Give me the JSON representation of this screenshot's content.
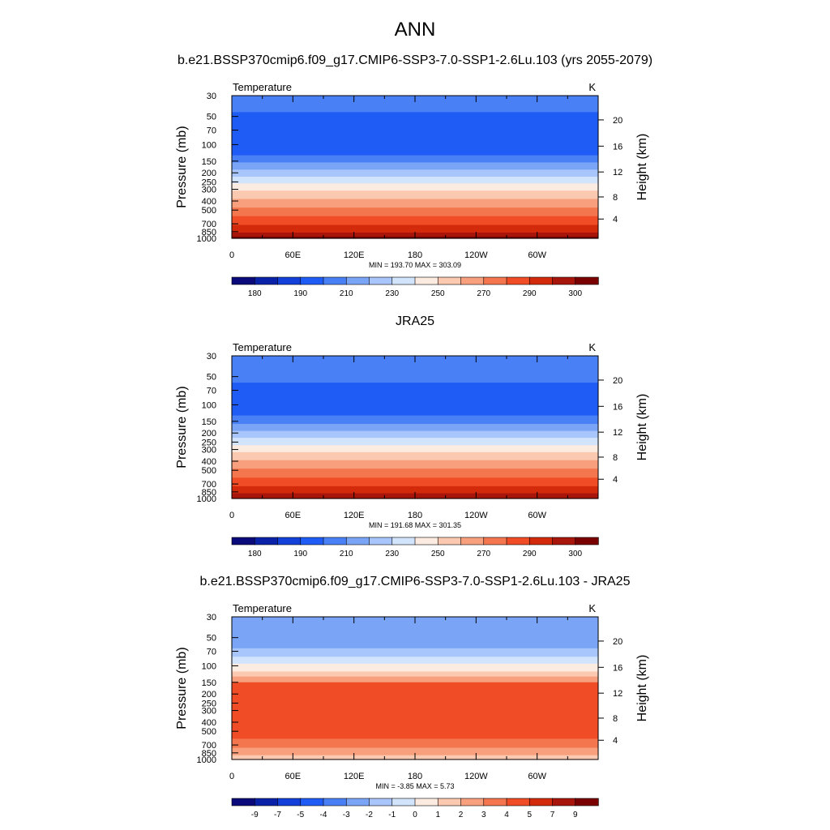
{
  "figure": {
    "title": "ANN",
    "subtitle": "b.e21.BSSP370cmip6.f09_g17.CMIP6-SSP3-7.0-SSP1-2.6Lu.103 (yrs 2055-2079)"
  },
  "chart_data": [
    {
      "type": "heatmap",
      "panel": "model",
      "title": "",
      "variable_label": "Temperature",
      "units": "K",
      "ylabel": "Pressure (mb)",
      "ylabel_right": "Height (km)",
      "x_ticks": [
        "0",
        "60E",
        "120E",
        "180",
        "120W",
        "60W"
      ],
      "pressure_ticks": [
        30,
        50,
        70,
        100,
        150,
        200,
        250,
        300,
        400,
        500,
        700,
        850,
        1000
      ],
      "height_ticks": [
        20,
        16,
        12,
        8,
        4
      ],
      "min_max_text": "MIN = 193.70  MAX = 303.09",
      "min": 193.7,
      "max": 303.09,
      "colorbar_labels": [
        "180",
        "190",
        "210",
        "230",
        "250",
        "270",
        "290",
        "300"
      ],
      "colorbar_colors": [
        "#0a0a7a",
        "#0a22a8",
        "#1240d8",
        "#1f5cf5",
        "#4a80f5",
        "#7aa5f7",
        "#a8c6fb",
        "#d2e4fc",
        "#fcebe0",
        "#fbc8b0",
        "#f8a07e",
        "#f4764e",
        "#f04c25",
        "#d42a0c",
        "#a8150a",
        "#7a0000"
      ],
      "layers": [
        {
          "p": 30,
          "c": 4
        },
        {
          "p": 45,
          "c": 3
        },
        {
          "p": 100,
          "c": 3
        },
        {
          "p": 130,
          "c": 4
        },
        {
          "p": 155,
          "c": 5
        },
        {
          "p": 185,
          "c": 6
        },
        {
          "p": 220,
          "c": 7
        },
        {
          "p": 260,
          "c": 8
        },
        {
          "p": 310,
          "c": 9
        },
        {
          "p": 380,
          "c": 10
        },
        {
          "p": 470,
          "c": 11
        },
        {
          "p": 580,
          "c": 12
        },
        {
          "p": 720,
          "c": 13
        },
        {
          "p": 870,
          "c": 14
        },
        {
          "p": 960,
          "c": 15
        }
      ]
    },
    {
      "type": "heatmap",
      "panel": "obs",
      "title": "JRA25",
      "variable_label": "Temperature",
      "units": "K",
      "ylabel": "Pressure (mb)",
      "ylabel_right": "Height (km)",
      "x_ticks": [
        "0",
        "60E",
        "120E",
        "180",
        "120W",
        "60W"
      ],
      "pressure_ticks": [
        30,
        50,
        70,
        100,
        150,
        200,
        250,
        300,
        400,
        500,
        700,
        850,
        1000
      ],
      "height_ticks": [
        20,
        16,
        12,
        8,
        4
      ],
      "min_max_text": "MIN = 191.68  MAX = 301.35",
      "min": 191.68,
      "max": 301.35,
      "colorbar_labels": [
        "180",
        "190",
        "210",
        "230",
        "250",
        "270",
        "290",
        "300"
      ],
      "colorbar_colors": [
        "#0a0a7a",
        "#0a22a8",
        "#1240d8",
        "#1f5cf5",
        "#4a80f5",
        "#7aa5f7",
        "#a8c6fb",
        "#d2e4fc",
        "#fcebe0",
        "#fbc8b0",
        "#f8a07e",
        "#f4764e",
        "#f04c25",
        "#d42a0c",
        "#a8150a",
        "#7a0000"
      ],
      "layers": [
        {
          "p": 30,
          "c": 4
        },
        {
          "p": 58,
          "c": 3
        },
        {
          "p": 130,
          "c": 4
        },
        {
          "p": 160,
          "c": 5
        },
        {
          "p": 190,
          "c": 6
        },
        {
          "p": 225,
          "c": 7
        },
        {
          "p": 270,
          "c": 8
        },
        {
          "p": 320,
          "c": 9
        },
        {
          "p": 390,
          "c": 10
        },
        {
          "p": 480,
          "c": 11
        },
        {
          "p": 600,
          "c": 12
        },
        {
          "p": 740,
          "c": 13
        },
        {
          "p": 880,
          "c": 14
        }
      ]
    },
    {
      "type": "heatmap",
      "panel": "difference",
      "title": "b.e21.BSSP370cmip6.f09_g17.CMIP6-SSP3-7.0-SSP1-2.6Lu.103 - JRA25",
      "variable_label": "Temperature",
      "units": "K",
      "ylabel": "Pressure (mb)",
      "ylabel_right": "Height (km)",
      "x_ticks": [
        "0",
        "60E",
        "120E",
        "180",
        "120W",
        "60W"
      ],
      "pressure_ticks": [
        30,
        50,
        70,
        100,
        150,
        200,
        250,
        300,
        400,
        500,
        700,
        850,
        1000
      ],
      "height_ticks": [
        20,
        16,
        12,
        8,
        4
      ],
      "min_max_text": "MIN =  -3.85  MAX =   5.73",
      "min": -3.85,
      "max": 5.73,
      "colorbar_labels": [
        "-9",
        "-7",
        "-5",
        "-4",
        "-3",
        "-2",
        "-1",
        "0",
        "1",
        "2",
        "3",
        "4",
        "5",
        "7",
        "9"
      ],
      "colorbar_colors": [
        "#0a0a7a",
        "#0a22a8",
        "#1240d8",
        "#1f5cf5",
        "#4a80f5",
        "#7aa5f7",
        "#a8c6fb",
        "#d2e4fc",
        "#fcebe0",
        "#fbc8b0",
        "#f8a07e",
        "#f4764e",
        "#f04c25",
        "#d42a0c",
        "#a8150a",
        "#7a0000"
      ],
      "layers": [
        {
          "p": 30,
          "c": 5
        },
        {
          "p": 65,
          "c": 6
        },
        {
          "p": 80,
          "c": 7
        },
        {
          "p": 95,
          "c": 8
        },
        {
          "p": 115,
          "c": 9
        },
        {
          "p": 130,
          "c": 10
        },
        {
          "p": 150,
          "c": 12
        },
        {
          "p": 600,
          "c": 11
        },
        {
          "p": 750,
          "c": 10
        },
        {
          "p": 900,
          "c": 9
        }
      ]
    }
  ]
}
